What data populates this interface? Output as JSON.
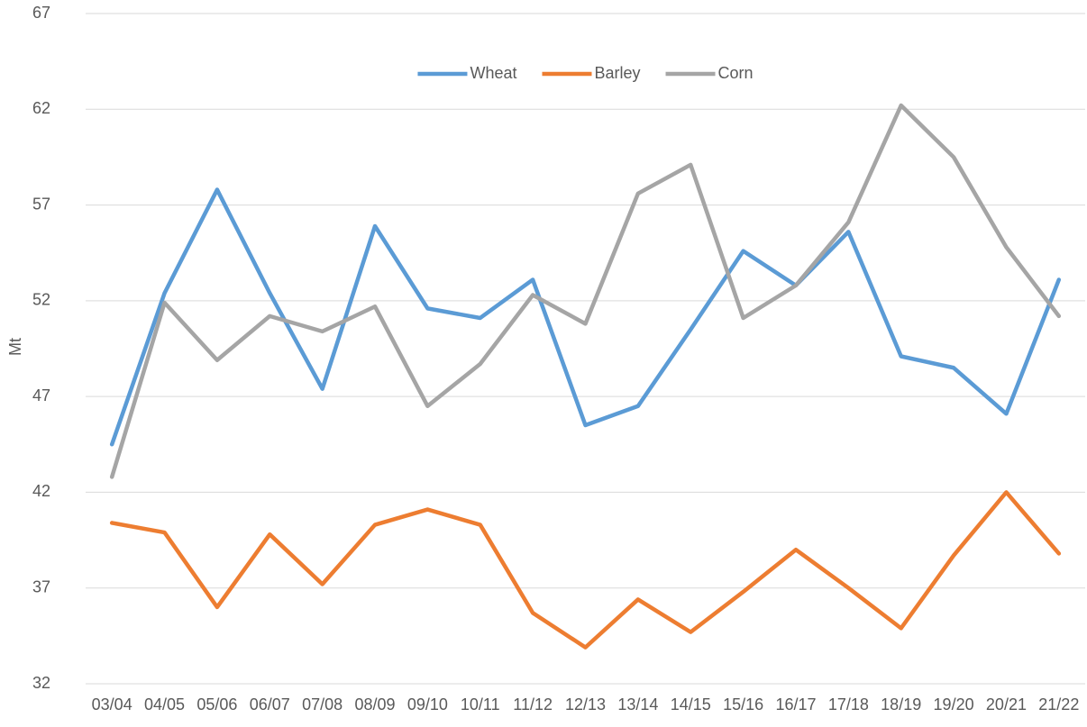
{
  "chart_data": {
    "type": "line",
    "y_label": "Mt",
    "categories": [
      "03/04",
      "04/05",
      "05/06",
      "06/07",
      "07/08",
      "08/09",
      "09/10",
      "10/11",
      "11/12",
      "12/13",
      "13/14",
      "14/15",
      "15/16",
      "16/17",
      "17/18",
      "18/19",
      "19/20",
      "20/21",
      "21/22"
    ],
    "series": [
      {
        "name": "Wheat",
        "color": "#5b9bd5",
        "values": [
          44.5,
          52.4,
          57.8,
          52.4,
          47.4,
          55.9,
          51.6,
          51.1,
          53.1,
          45.5,
          46.5,
          50.5,
          54.6,
          52.8,
          55.6,
          49.1,
          48.5,
          46.1,
          53.1
        ]
      },
      {
        "name": "Barley",
        "color": "#ed7d31",
        "values": [
          40.4,
          39.9,
          36.0,
          39.8,
          37.2,
          40.3,
          41.1,
          40.3,
          35.7,
          33.9,
          36.4,
          34.7,
          36.8,
          39.0,
          37.0,
          34.9,
          38.7,
          42.0,
          38.8
        ]
      },
      {
        "name": "Corn",
        "color": "#a5a5a5",
        "values": [
          42.8,
          51.9,
          48.9,
          51.2,
          50.4,
          51.7,
          46.5,
          48.7,
          52.3,
          50.8,
          57.6,
          59.1,
          51.1,
          52.8,
          56.1,
          62.2,
          59.5,
          54.8,
          51.2
        ]
      }
    ],
    "ylim": [
      32,
      67
    ],
    "yticks": [
      32,
      37,
      42,
      47,
      52,
      57,
      62,
      67
    ],
    "grid": true,
    "legend": "top"
  }
}
